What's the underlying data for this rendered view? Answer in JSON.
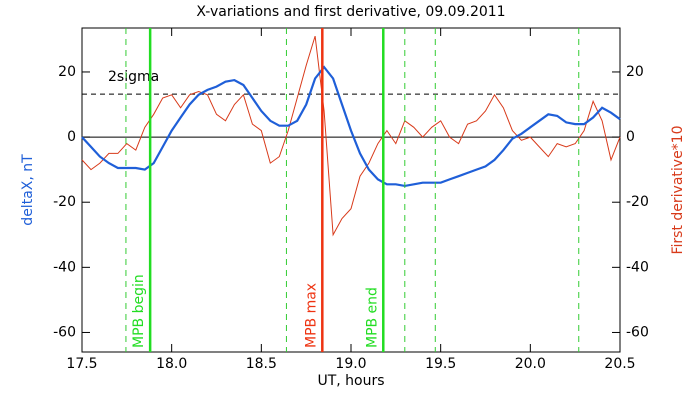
{
  "chart_data": {
    "type": "line",
    "title": "X-variations and first derivative, 09.09.2011",
    "xlabel": "UT, hours",
    "ylabel": "deltaX, nT",
    "y2label": "First derivative*10",
    "xlim": [
      17.5,
      20.5
    ],
    "ylim": [
      -66,
      33.5
    ],
    "y2lim": [
      -66,
      33.5
    ],
    "xticks": [
      17.5,
      {
        "value": 18,
        "label": "18.0"
      },
      18.5,
      {
        "value": 19,
        "label": "19.0"
      },
      19.5,
      {
        "value": 20,
        "label": "20.0"
      },
      20.5
    ],
    "yticks": [
      -60,
      -40,
      -20,
      0,
      20
    ],
    "y2ticks": [
      -60,
      -40,
      -20,
      0,
      20
    ],
    "x": [
      17.5,
      17.55,
      17.6,
      17.65,
      17.7,
      17.75,
      17.8,
      17.85,
      17.9,
      17.95,
      18,
      18.05,
      18.1,
      18.15,
      18.2,
      18.25,
      18.3,
      18.35,
      18.4,
      18.45,
      18.5,
      18.55,
      18.6,
      18.65,
      18.7,
      18.75,
      18.8,
      18.85,
      18.9,
      18.95,
      19,
      19.05,
      19.1,
      19.15,
      19.2,
      19.25,
      19.3,
      19.35,
      19.4,
      19.45,
      19.5,
      19.55,
      19.6,
      19.65,
      19.7,
      19.75,
      19.8,
      19.85,
      19.9,
      19.95,
      20,
      20.05,
      20.1,
      20.15,
      20.2,
      20.25,
      20.3,
      20.35,
      20.4,
      20.45,
      20.5
    ],
    "series": [
      {
        "name": "deltaX, nT",
        "color": "#1f5fd8",
        "width": 2.2,
        "values": [
          0,
          -3,
          -6,
          -8,
          -9.5,
          -9.5,
          -9.5,
          -10,
          -8,
          -3,
          2,
          6,
          10,
          13,
          14.5,
          15.5,
          17,
          17.5,
          16,
          12,
          8,
          5,
          3.5,
          3.5,
          5,
          10,
          18,
          21.5,
          18,
          10,
          2,
          -5,
          -10,
          -13,
          -14.5,
          -14.5,
          -15,
          -14.5,
          -14,
          -14,
          -14,
          -13,
          -12,
          -11,
          -10,
          -9,
          -7,
          -4,
          -0.5,
          1,
          3,
          5,
          7,
          6.5,
          4.5,
          4,
          4,
          6,
          9,
          7.5,
          5.5
        ]
      },
      {
        "name": "First derivative*10",
        "color": "#d83a1a",
        "width": 1,
        "axis": "y2",
        "values": [
          -7,
          -10,
          -8,
          -5,
          -5,
          -2,
          -4,
          3,
          7,
          12,
          13,
          9,
          13,
          14,
          13,
          7,
          5,
          10,
          13,
          4,
          2,
          -8,
          -6,
          2,
          12,
          22,
          31,
          8,
          -30,
          -25,
          -22,
          -12,
          -8,
          -2,
          2,
          -2,
          5,
          3,
          0,
          3,
          5,
          0,
          -2,
          4,
          5,
          8,
          13,
          9,
          2,
          -1,
          0,
          -3,
          -6,
          -2,
          -3,
          -2,
          2,
          11,
          5,
          -7,
          0
        ]
      }
    ],
    "hlines": [
      {
        "y": 0,
        "style": "solid",
        "color": "#000000"
      },
      {
        "y": 13.2,
        "style": "dashed",
        "color": "#000000",
        "label": "2sigma"
      }
    ],
    "vlines": [
      {
        "x": 17.745,
        "style": "dashed",
        "color": "#33cc33"
      },
      {
        "x": 17.88,
        "style": "solid",
        "color": "#22dd22",
        "label": "MPB begin"
      },
      {
        "x": 18.64,
        "style": "dashed",
        "color": "#33cc33"
      },
      {
        "x": 18.84,
        "style": "solid",
        "color": "#ee3311",
        "label": "MPB max"
      },
      {
        "x": 19.18,
        "style": "solid",
        "color": "#22dd22",
        "label": "MPB end"
      },
      {
        "x": 19.3,
        "style": "dashed",
        "color": "#33cc33"
      },
      {
        "x": 19.47,
        "style": "dashed",
        "color": "#33cc33"
      },
      {
        "x": 20.27,
        "style": "dashed",
        "color": "#33cc33"
      }
    ]
  }
}
